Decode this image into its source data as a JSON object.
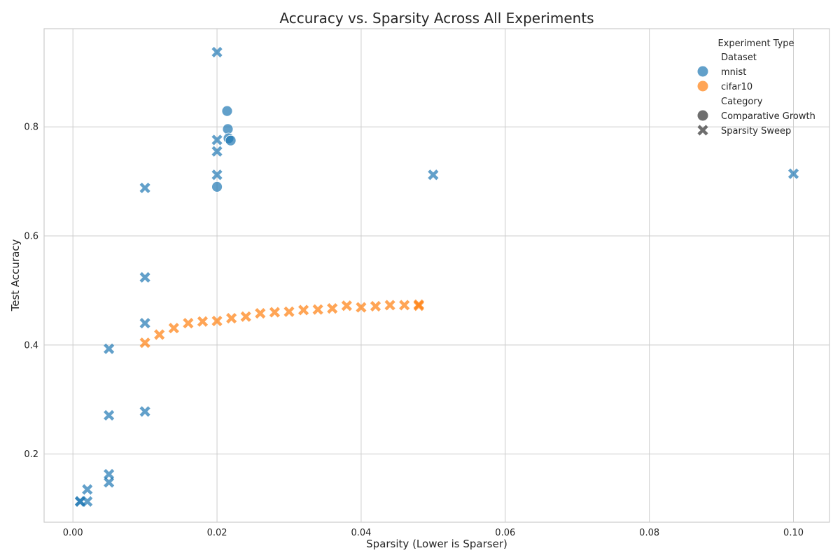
{
  "chart_data": {
    "type": "scatter",
    "title": "Accuracy vs. Sparsity Across All Experiments",
    "xlabel": "Sparsity (Lower is Sparser)",
    "ylabel": "Test Accuracy",
    "xlim": [
      -0.004,
      0.105
    ],
    "ylim": [
      0.075,
      0.98
    ],
    "xticks": [
      0.0,
      0.02,
      0.04,
      0.06,
      0.08,
      0.1
    ],
    "xtick_labels": [
      "0.00",
      "0.02",
      "0.04",
      "0.06",
      "0.08",
      "0.10"
    ],
    "yticks": [
      0.2,
      0.4,
      0.6,
      0.8
    ],
    "ytick_labels": [
      "0.2",
      "0.4",
      "0.6",
      "0.8"
    ],
    "grid": true,
    "legend": {
      "title": "Experiment Type",
      "placement": "top-right",
      "hue_title": "Dataset",
      "hue_entries": [
        {
          "label": "mnist",
          "color": "#1f77b4"
        },
        {
          "label": "cifar10",
          "color": "#ff7f0e"
        }
      ],
      "style_title": "Category",
      "style_entries": [
        {
          "label": "Comparative Growth",
          "marker": "circle"
        },
        {
          "label": "Sparsity Sweep",
          "marker": "x"
        }
      ]
    },
    "series": [
      {
        "dataset": "mnist",
        "category": "Comparative Growth",
        "color": "#1f77b4",
        "marker": "circle",
        "points": [
          {
            "x": 0.0214,
            "y": 0.829
          },
          {
            "x": 0.0215,
            "y": 0.796
          },
          {
            "x": 0.0216,
            "y": 0.779
          },
          {
            "x": 0.0219,
            "y": 0.775
          },
          {
            "x": 0.02,
            "y": 0.69
          }
        ]
      },
      {
        "dataset": "mnist",
        "category": "Sparsity Sweep",
        "color": "#1f77b4",
        "marker": "x",
        "points": [
          {
            "x": 0.02,
            "y": 0.937
          },
          {
            "x": 0.02,
            "y": 0.776
          },
          {
            "x": 0.02,
            "y": 0.755
          },
          {
            "x": 0.02,
            "y": 0.712
          },
          {
            "x": 0.05,
            "y": 0.712
          },
          {
            "x": 0.1,
            "y": 0.714
          },
          {
            "x": 0.01,
            "y": 0.688
          },
          {
            "x": 0.01,
            "y": 0.524
          },
          {
            "x": 0.01,
            "y": 0.44
          },
          {
            "x": 0.01,
            "y": 0.278
          },
          {
            "x": 0.005,
            "y": 0.393
          },
          {
            "x": 0.005,
            "y": 0.271
          },
          {
            "x": 0.005,
            "y": 0.163
          },
          {
            "x": 0.005,
            "y": 0.148
          },
          {
            "x": 0.002,
            "y": 0.135
          },
          {
            "x": 0.002,
            "y": 0.113
          },
          {
            "x": 0.001,
            "y": 0.113
          },
          {
            "x": 0.001,
            "y": 0.113
          }
        ]
      },
      {
        "dataset": "cifar10",
        "category": "Sparsity Sweep",
        "color": "#ff7f0e",
        "marker": "x",
        "points": [
          {
            "x": 0.01,
            "y": 0.404
          },
          {
            "x": 0.012,
            "y": 0.419
          },
          {
            "x": 0.014,
            "y": 0.431
          },
          {
            "x": 0.016,
            "y": 0.44
          },
          {
            "x": 0.018,
            "y": 0.443
          },
          {
            "x": 0.02,
            "y": 0.444
          },
          {
            "x": 0.022,
            "y": 0.449
          },
          {
            "x": 0.024,
            "y": 0.452
          },
          {
            "x": 0.026,
            "y": 0.458
          },
          {
            "x": 0.028,
            "y": 0.46
          },
          {
            "x": 0.03,
            "y": 0.461
          },
          {
            "x": 0.032,
            "y": 0.464
          },
          {
            "x": 0.034,
            "y": 0.465
          },
          {
            "x": 0.036,
            "y": 0.467
          },
          {
            "x": 0.038,
            "y": 0.472
          },
          {
            "x": 0.04,
            "y": 0.469
          },
          {
            "x": 0.042,
            "y": 0.471
          },
          {
            "x": 0.044,
            "y": 0.473
          },
          {
            "x": 0.046,
            "y": 0.473
          },
          {
            "x": 0.048,
            "y": 0.474
          },
          {
            "x": 0.048,
            "y": 0.472
          }
        ]
      }
    ]
  }
}
